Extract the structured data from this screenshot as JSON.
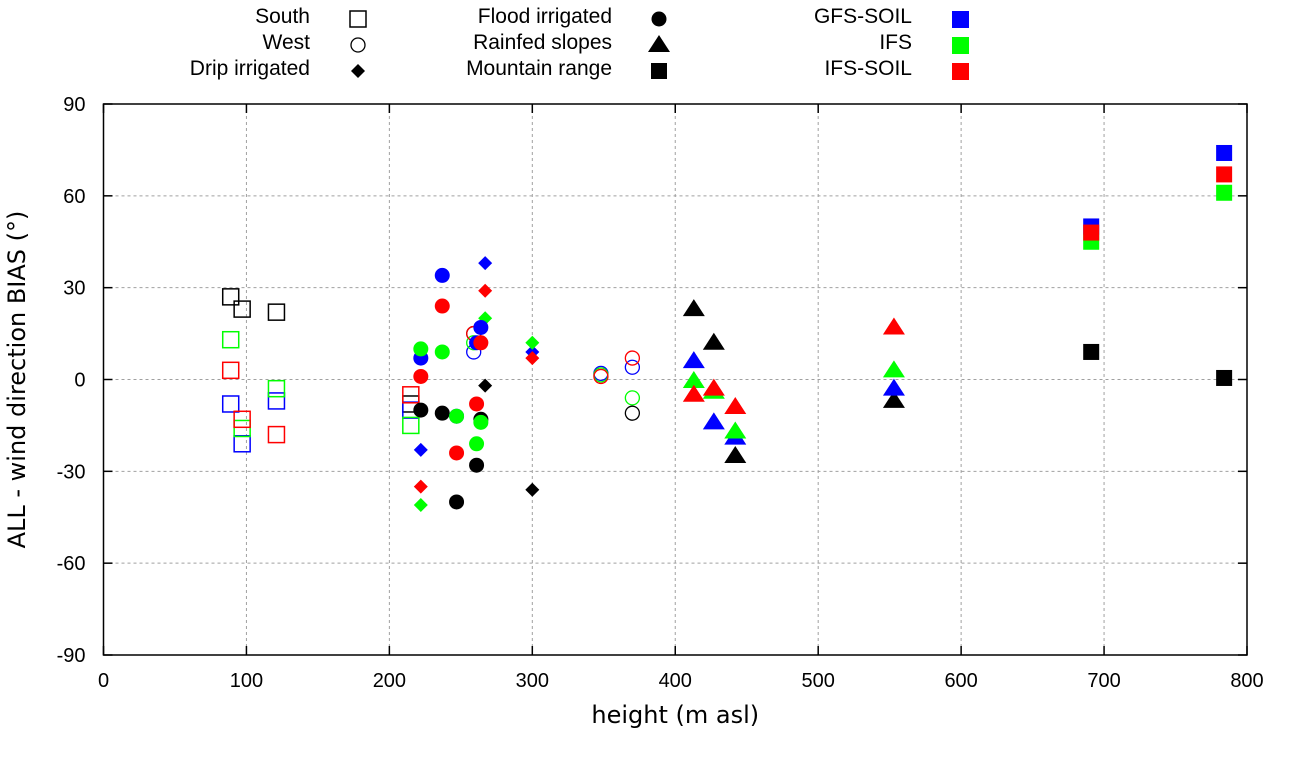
{
  "chart_data": {
    "type": "scatter",
    "title": "",
    "xlabel": "height (m asl)",
    "ylabel": "ALL - wind direction BIAS (°)",
    "xlim": [
      0,
      800
    ],
    "ylim": [
      -90,
      90
    ],
    "xticks": [
      0,
      100,
      200,
      300,
      400,
      500,
      600,
      700,
      800
    ],
    "yticks": [
      -90,
      -60,
      -30,
      0,
      30,
      60,
      90
    ],
    "grid": true,
    "legend_placement": "top (outside plot)",
    "region_legend": [
      {
        "name": "South",
        "marker": "open-square"
      },
      {
        "name": "West",
        "marker": "open-circle"
      },
      {
        "name": "Drip irrigated",
        "marker": "filled-diamond"
      },
      {
        "name": "Flood irrigated",
        "marker": "filled-circle"
      },
      {
        "name": "Rainfed slopes",
        "marker": "filled-triangle"
      },
      {
        "name": "Mountain range",
        "marker": "filled-square"
      }
    ],
    "model_legend": [
      {
        "name": "GFS-SOIL",
        "color": "#0000ff"
      },
      {
        "name": "IFS",
        "color": "#00ff00"
      },
      {
        "name": "IFS-SOIL",
        "color": "#ff0000"
      }
    ],
    "series": [
      {
        "name": "South",
        "marker": "open-square",
        "points": [
          {
            "x": 89,
            "observed": 27,
            "GFS-SOIL": -8,
            "IFS": 13,
            "IFS-SOIL": 3
          },
          {
            "x": 97,
            "observed": 23,
            "GFS-SOIL": -21,
            "IFS": -16,
            "IFS-SOIL": -13
          },
          {
            "x": 121,
            "observed": 22,
            "GFS-SOIL": -7,
            "IFS": -3,
            "IFS-SOIL": -18
          },
          {
            "x": 215,
            "observed": -8,
            "GFS-SOIL": -10,
            "IFS": -15,
            "IFS-SOIL": -5
          }
        ]
      },
      {
        "name": "West",
        "marker": "open-circle",
        "points": [
          {
            "x": 259,
            "observed": 15,
            "GFS-SOIL": 9,
            "IFS": 12,
            "IFS-SOIL": 15
          },
          {
            "x": 348,
            "observed": null,
            "GFS-SOIL": 2,
            "IFS": 1.5,
            "IFS-SOIL": 1
          },
          {
            "x": 370,
            "observed": -11,
            "GFS-SOIL": 4,
            "IFS": -6,
            "IFS-SOIL": 7
          }
        ]
      },
      {
        "name": "Drip irrigated",
        "marker": "filled-diamond",
        "points": [
          {
            "x": 222,
            "observed": null,
            "GFS-SOIL": -23,
            "IFS": -41,
            "IFS-SOIL": -35
          },
          {
            "x": 267,
            "observed": -2,
            "GFS-SOIL": 38,
            "IFS": 20,
            "IFS-SOIL": 29
          },
          {
            "x": 300,
            "observed": -36,
            "GFS-SOIL": 9,
            "IFS": 12,
            "IFS-SOIL": 7
          }
        ]
      },
      {
        "name": "Flood irrigated",
        "marker": "filled-circle",
        "points": [
          {
            "x": 222,
            "observed": -10,
            "GFS-SOIL": 7,
            "IFS": 10,
            "IFS-SOIL": 1
          },
          {
            "x": 237,
            "observed": -11,
            "GFS-SOIL": 34,
            "IFS": 9,
            "IFS-SOIL": 24
          },
          {
            "x": 247,
            "observed": -40,
            "GFS-SOIL": -12,
            "IFS": -12,
            "IFS-SOIL": -24
          },
          {
            "x": 261,
            "observed": -28,
            "GFS-SOIL": 12,
            "IFS": -21,
            "IFS-SOIL": -8
          },
          {
            "x": 264,
            "observed": -13,
            "GFS-SOIL": 17,
            "IFS": -14,
            "IFS-SOIL": 12
          }
        ]
      },
      {
        "name": "Rainfed slopes",
        "marker": "filled-triangle",
        "points": [
          {
            "x": 413,
            "observed": 23,
            "GFS-SOIL": 6,
            "IFS": -0.5,
            "IFS-SOIL": -5
          },
          {
            "x": 427,
            "observed": 12,
            "GFS-SOIL": -14,
            "IFS": -4,
            "IFS-SOIL": -3
          },
          {
            "x": 442,
            "observed": -25,
            "GFS-SOIL": -19,
            "IFS": -17,
            "IFS-SOIL": -9
          },
          {
            "x": 553,
            "observed": -7,
            "GFS-SOIL": -3,
            "IFS": 3,
            "IFS-SOIL": 17
          }
        ]
      },
      {
        "name": "Mountain range",
        "marker": "filled-square",
        "points": [
          {
            "x": 691,
            "observed": 9,
            "GFS-SOIL": 50,
            "IFS": 45,
            "IFS-SOIL": 48
          },
          {
            "x": 784,
            "observed": 0.5,
            "GFS-SOIL": 74,
            "IFS": 61,
            "IFS-SOIL": 67
          }
        ]
      }
    ],
    "color_key": {
      "observed": "#000000",
      "GFS-SOIL": "#0000ff",
      "IFS": "#00ff00",
      "IFS-SOIL": "#ff0000"
    }
  }
}
